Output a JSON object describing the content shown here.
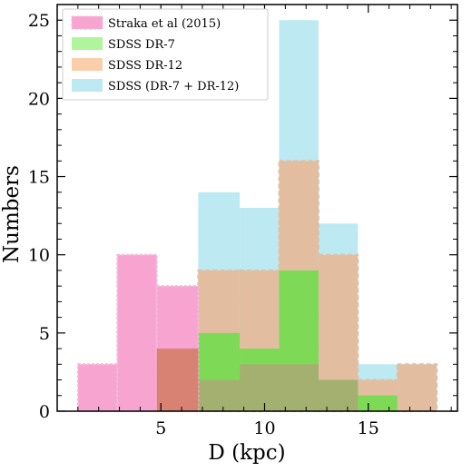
{
  "chart_data": {
    "type": "bar",
    "xlabel": "D (kpc)",
    "ylabel": "Numbers",
    "xlim": [
      0,
      19.3
    ],
    "ylim": [
      0,
      26
    ],
    "xticks": [
      5,
      10,
      15
    ],
    "yticks": [
      0,
      5,
      10,
      15,
      20,
      25
    ],
    "grid": false,
    "legend_position": "top-left",
    "bin_edges": [
      1.0,
      2.9,
      4.8,
      6.8,
      8.8,
      10.7,
      12.6,
      14.5,
      16.4,
      18.3
    ],
    "series": [
      {
        "name": "SDSS (DR-7 + DR-12)",
        "key": "combined",
        "color": "#bde9f3",
        "values": [
          0,
          0,
          0,
          14,
          13,
          25,
          12,
          3,
          3
        ]
      },
      {
        "name": "SDSS DR-12",
        "key": "dr12",
        "color": "#e3bda0",
        "values": [
          0,
          0,
          0,
          9,
          9,
          16,
          10,
          2,
          3
        ]
      },
      {
        "name": "SDSS DR-7",
        "key": "dr7",
        "color": "#7ed957",
        "values": [
          0,
          0,
          0,
          5,
          4,
          9,
          2,
          1,
          0
        ]
      },
      {
        "name": "Straka et al (2015)",
        "key": "straka",
        "color": "#f7a5d0",
        "values": [
          3,
          10,
          8,
          0,
          0,
          0,
          0,
          0,
          0
        ]
      }
    ],
    "overlaps": [
      {
        "description": "DR-7 in DR-12 region",
        "color": "#a4b070",
        "values": [
          0,
          0,
          0,
          2,
          3,
          3,
          2,
          0,
          0
        ]
      },
      {
        "description": "Straka overlap",
        "color": "#d88273",
        "values": [
          0,
          0,
          4,
          0,
          0,
          0,
          0,
          0,
          0
        ]
      }
    ]
  },
  "legend": {
    "items": [
      {
        "label": "Straka et al (2015)",
        "color": "#f7a5d0",
        "dashed": true
      },
      {
        "label": "SDSS DR-7",
        "color": "#aef59c",
        "dashed": false
      },
      {
        "label": "SDSS DR-12",
        "color": "#f9cfab",
        "dashed": false
      },
      {
        "label": "SDSS (DR-7 + DR-12)",
        "color": "#bde9f3",
        "dashed": false
      }
    ]
  }
}
